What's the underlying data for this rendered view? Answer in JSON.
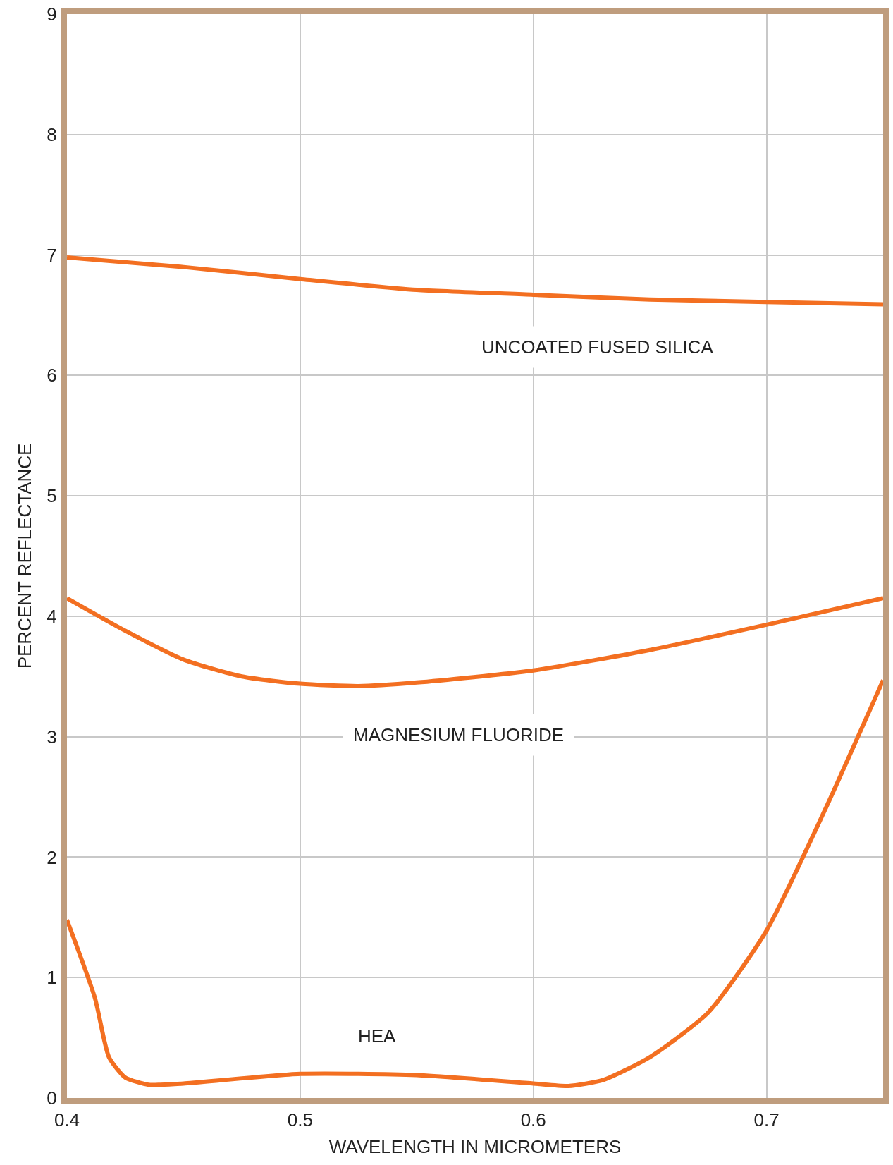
{
  "chart_data": {
    "type": "line",
    "xlabel": "WAVELENGTH IN MICROMETERS",
    "ylabel": "PERCENT REFLECTANCE",
    "xlim": [
      0.4,
      0.75
    ],
    "xticks": [
      0.4,
      0.5,
      0.6,
      0.7
    ],
    "ylim": [
      0,
      9
    ],
    "yticks": [
      0,
      1,
      2,
      3,
      4,
      5,
      6,
      7,
      8,
      9
    ],
    "grid": true,
    "legend": false,
    "marker": "none",
    "line_style": "solid",
    "series": [
      {
        "name": "UNCOATED FUSED SILICA",
        "color": "#f36f21",
        "x": [
          0.4,
          0.45,
          0.5,
          0.55,
          0.6,
          0.65,
          0.7,
          0.75
        ],
        "values": [
          6.98,
          6.9,
          6.8,
          6.71,
          6.67,
          6.63,
          6.61,
          6.59
        ]
      },
      {
        "name": "MAGNESIUM FLUORIDE",
        "color": "#f36f21",
        "x": [
          0.4,
          0.425,
          0.45,
          0.475,
          0.5,
          0.525,
          0.55,
          0.6,
          0.65,
          0.7,
          0.75
        ],
        "values": [
          4.15,
          3.88,
          3.64,
          3.5,
          3.44,
          3.42,
          3.45,
          3.55,
          3.72,
          3.93,
          4.15
        ]
      },
      {
        "name": "HEA",
        "color": "#f36f21",
        "x": [
          0.4,
          0.412,
          0.418,
          0.425,
          0.435,
          0.44,
          0.45,
          0.5,
          0.55,
          0.6,
          0.615,
          0.63,
          0.65,
          0.675,
          0.7,
          0.725,
          0.75
        ],
        "values": [
          1.48,
          0.83,
          0.34,
          0.17,
          0.11,
          0.11,
          0.12,
          0.2,
          0.19,
          0.12,
          0.1,
          0.15,
          0.34,
          0.71,
          1.39,
          2.39,
          3.47
        ]
      }
    ]
  }
}
